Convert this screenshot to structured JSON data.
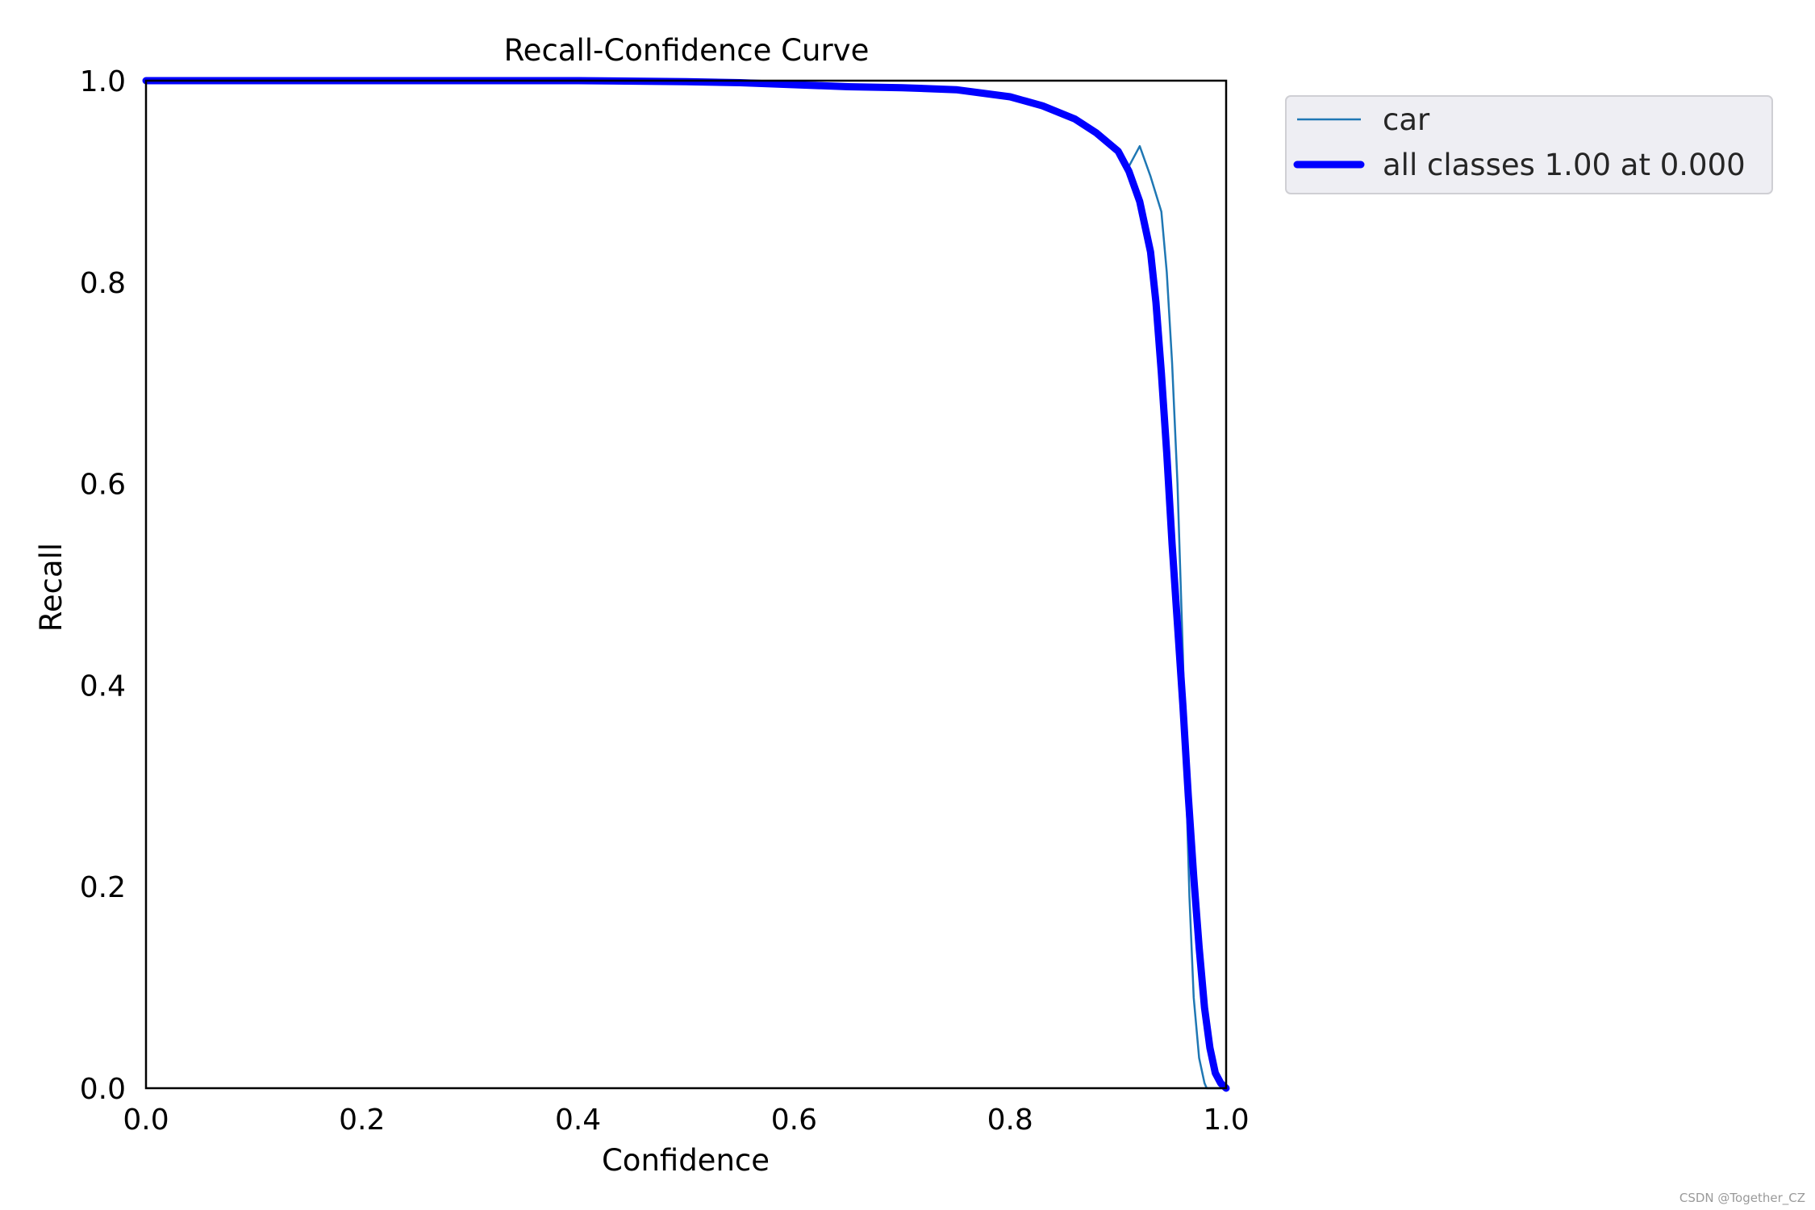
{
  "chart_data": {
    "type": "line",
    "title": "Recall-Confidence Curve",
    "xlabel": "Confidence",
    "ylabel": "Recall",
    "xlim": [
      0,
      1
    ],
    "ylim": [
      0,
      1
    ],
    "grid": false,
    "legend_position": "outside upper right",
    "xticks": [
      "0.0",
      "0.2",
      "0.4",
      "0.6",
      "0.8",
      "1.0"
    ],
    "yticks": [
      "0.0",
      "0.2",
      "0.4",
      "0.6",
      "0.8",
      "1.0"
    ],
    "series": [
      {
        "name": "car",
        "color": "#1f77b4",
        "x": [
          0.0,
          0.1,
          0.2,
          0.3,
          0.4,
          0.5,
          0.55,
          0.6,
          0.65,
          0.7,
          0.75,
          0.8,
          0.83,
          0.86,
          0.88,
          0.9,
          0.91,
          0.92,
          0.93,
          0.94,
          0.945,
          0.95,
          0.955,
          0.96,
          0.963,
          0.966,
          0.97,
          0.975,
          0.98,
          0.982,
          0.985,
          0.99,
          1.0
        ],
        "y": [
          1.0,
          1.0,
          1.0,
          1.0,
          1.0,
          0.999,
          0.998,
          0.996,
          0.994,
          0.993,
          0.991,
          0.984,
          0.975,
          0.962,
          0.948,
          0.93,
          0.915,
          0.935,
          0.905,
          0.87,
          0.81,
          0.72,
          0.6,
          0.43,
          0.3,
          0.19,
          0.09,
          0.03,
          0.005,
          0.0,
          0.0,
          0.0,
          0.0
        ]
      },
      {
        "name": "all classes 1.00 at 0.000",
        "color": "#0000ff",
        "x": [
          0.0,
          0.1,
          0.2,
          0.3,
          0.4,
          0.5,
          0.55,
          0.6,
          0.65,
          0.7,
          0.75,
          0.8,
          0.83,
          0.86,
          0.88,
          0.9,
          0.91,
          0.92,
          0.93,
          0.935,
          0.94,
          0.945,
          0.95,
          0.955,
          0.96,
          0.965,
          0.97,
          0.975,
          0.98,
          0.985,
          0.99,
          0.995,
          1.0
        ],
        "y": [
          1.0,
          1.0,
          1.0,
          1.0,
          1.0,
          0.999,
          0.998,
          0.996,
          0.994,
          0.993,
          0.991,
          0.984,
          0.975,
          0.962,
          0.948,
          0.93,
          0.91,
          0.88,
          0.83,
          0.78,
          0.71,
          0.63,
          0.54,
          0.46,
          0.38,
          0.29,
          0.21,
          0.14,
          0.08,
          0.04,
          0.015,
          0.005,
          0.0
        ]
      }
    ]
  },
  "watermark": "CSDN @Together_CZ"
}
